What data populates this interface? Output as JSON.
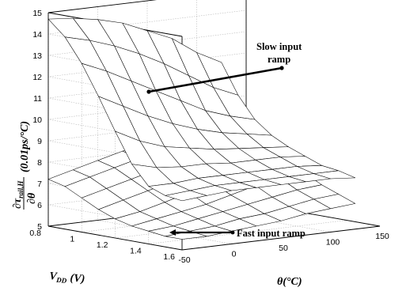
{
  "chart_data": {
    "type": "surface",
    "z_axis": {
      "ylim": [
        5,
        15
      ],
      "ticks": [
        "5",
        "6",
        "7",
        "8",
        "9",
        "10",
        "11",
        "12",
        "13",
        "14",
        "15"
      ],
      "label_parts": {
        "numerator": "∂τ",
        "numerator_sub": "rail,H",
        "denominator": "∂θ",
        "units": "(0.01ps/°C)"
      }
    },
    "vdd_axis": {
      "range": [
        0.8,
        1.6
      ],
      "ticks": [
        "0.8",
        "1",
        "1.2",
        "1.4",
        "1.6"
      ],
      "label_main": "V",
      "label_sub": "DD",
      "label_units": "(V)"
    },
    "theta_axis": {
      "range": [
        -50,
        150
      ],
      "ticks": [
        "-50",
        "0",
        "50",
        "100",
        "150"
      ],
      "label": "θ(°C)"
    },
    "grid": true,
    "annotations": {
      "slow_line1": "Slow input",
      "slow_line2": "ramp",
      "fast": "Fast input ramp"
    },
    "surfaces": [
      {
        "name": "Slow input ramp",
        "vdd": [
          0.8,
          0.9,
          1.0,
          1.1,
          1.2,
          1.3,
          1.4,
          1.5,
          1.6
        ],
        "theta": [
          -50,
          -25,
          0,
          25,
          50,
          75,
          100,
          125
        ],
        "z": [
          [
            14.7,
            14.6,
            14.4,
            14.1,
            13.6,
            13.1,
            12.3,
            11.7
          ],
          [
            14.0,
            13.7,
            13.3,
            12.8,
            12.2,
            11.5,
            10.8,
            10.3
          ],
          [
            12.9,
            12.4,
            11.8,
            11.2,
            10.6,
            10.0,
            9.6,
            9.3
          ],
          [
            11.5,
            10.9,
            10.3,
            9.8,
            9.4,
            9.1,
            8.9,
            8.7
          ],
          [
            10.0,
            9.4,
            9.0,
            8.8,
            8.6,
            8.5,
            8.4,
            8.3
          ],
          [
            8.6,
            8.3,
            8.2,
            8.2,
            8.1,
            8.1,
            8.1,
            8.0
          ],
          [
            7.7,
            7.7,
            7.8,
            7.8,
            7.8,
            7.8,
            7.8,
            7.7
          ],
          [
            7.4,
            7.5,
            7.6,
            7.6,
            7.6,
            7.6,
            7.6,
            7.6
          ],
          [
            7.3,
            7.4,
            7.5,
            7.5,
            7.5,
            7.5,
            7.5,
            7.4
          ]
        ]
      },
      {
        "name": "Fast input ramp",
        "vdd": [
          0.8,
          0.9,
          1.0,
          1.1,
          1.2,
          1.3,
          1.4,
          1.5,
          1.6
        ],
        "theta": [
          -50,
          -25,
          0,
          25,
          50,
          75,
          100,
          125
        ],
        "z": [
          [
            7.2,
            7.5,
            7.8,
            8.1,
            8.4,
            8.6,
            8.8,
            8.8
          ],
          [
            7.0,
            7.3,
            7.6,
            7.9,
            8.2,
            8.4,
            8.6,
            8.6
          ],
          [
            6.6,
            6.9,
            7.2,
            7.5,
            7.8,
            8.1,
            8.3,
            8.4
          ],
          [
            6.2,
            6.5,
            6.8,
            7.1,
            7.4,
            7.7,
            7.9,
            8.0
          ],
          [
            5.9,
            6.1,
            6.4,
            6.7,
            7.0,
            7.3,
            7.5,
            7.6
          ],
          [
            5.7,
            5.9,
            6.1,
            6.3,
            6.6,
            6.9,
            7.1,
            7.2
          ],
          [
            5.6,
            5.7,
            5.9,
            6.1,
            6.3,
            6.5,
            6.7,
            6.8
          ],
          [
            5.5,
            5.6,
            5.7,
            5.9,
            6.0,
            6.2,
            6.4,
            6.5
          ],
          [
            5.5,
            5.5,
            5.6,
            5.7,
            5.8,
            6.0,
            6.1,
            6.2
          ]
        ]
      }
    ]
  }
}
